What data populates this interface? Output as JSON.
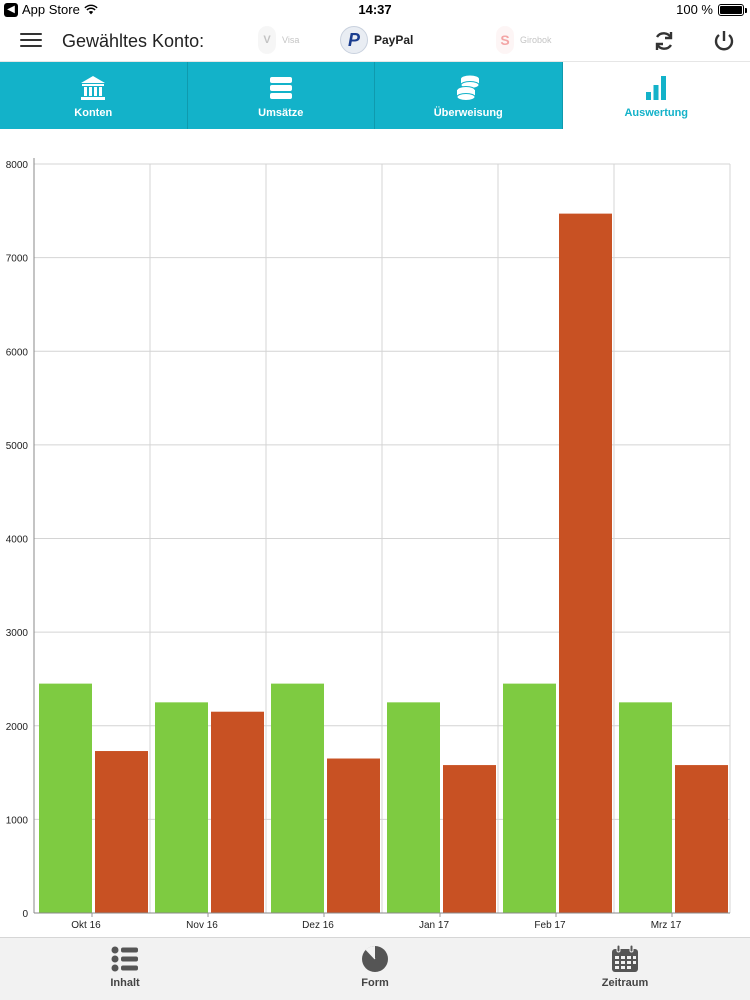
{
  "statusbar": {
    "carrier": "App Store",
    "time": "14:37",
    "battery": "100 %",
    "battery_level": 1.0
  },
  "header": {
    "account_label": "Gewähltes Konto:",
    "accounts": [
      {
        "name": "Visa",
        "logo": "V",
        "selected": false
      },
      {
        "name": "PayPal",
        "logo": "P",
        "selected": true
      },
      {
        "name": "Girobok",
        "logo": "S",
        "selected": false
      }
    ]
  },
  "tabs": [
    {
      "label": "Konten",
      "icon": "bank-icon",
      "active": false
    },
    {
      "label": "Umsätze",
      "icon": "list-stack-icon",
      "active": false
    },
    {
      "label": "Überweisung",
      "icon": "coins-icon",
      "active": false
    },
    {
      "label": "Auswertung",
      "icon": "bar-chart-icon",
      "active": true
    }
  ],
  "chart_data": {
    "type": "bar",
    "categories": [
      "Okt 16",
      "Nov 16",
      "Dez 16",
      "Jan 17",
      "Feb 17",
      "Mrz 17"
    ],
    "series": [
      {
        "color": "#7ecb41",
        "values": [
          2450,
          2250,
          2450,
          2250,
          2450,
          2250
        ]
      },
      {
        "color": "#c85123",
        "values": [
          1730,
          2150,
          1650,
          1580,
          7470,
          1580
        ]
      }
    ],
    "ylim": [
      0,
      8000
    ],
    "yticks": [
      "0",
      "1000",
      "2000",
      "3000",
      "4000",
      "5000",
      "6000",
      "7000",
      "8000"
    ],
    "grid": true,
    "title": "",
    "xlabel": "",
    "ylabel": ""
  },
  "bottombar": {
    "items": [
      {
        "label": "Inhalt",
        "icon": "list-icon"
      },
      {
        "label": "Form",
        "icon": "pie-chart-icon"
      },
      {
        "label": "Zeitraum",
        "icon": "calendar-icon"
      }
    ]
  }
}
